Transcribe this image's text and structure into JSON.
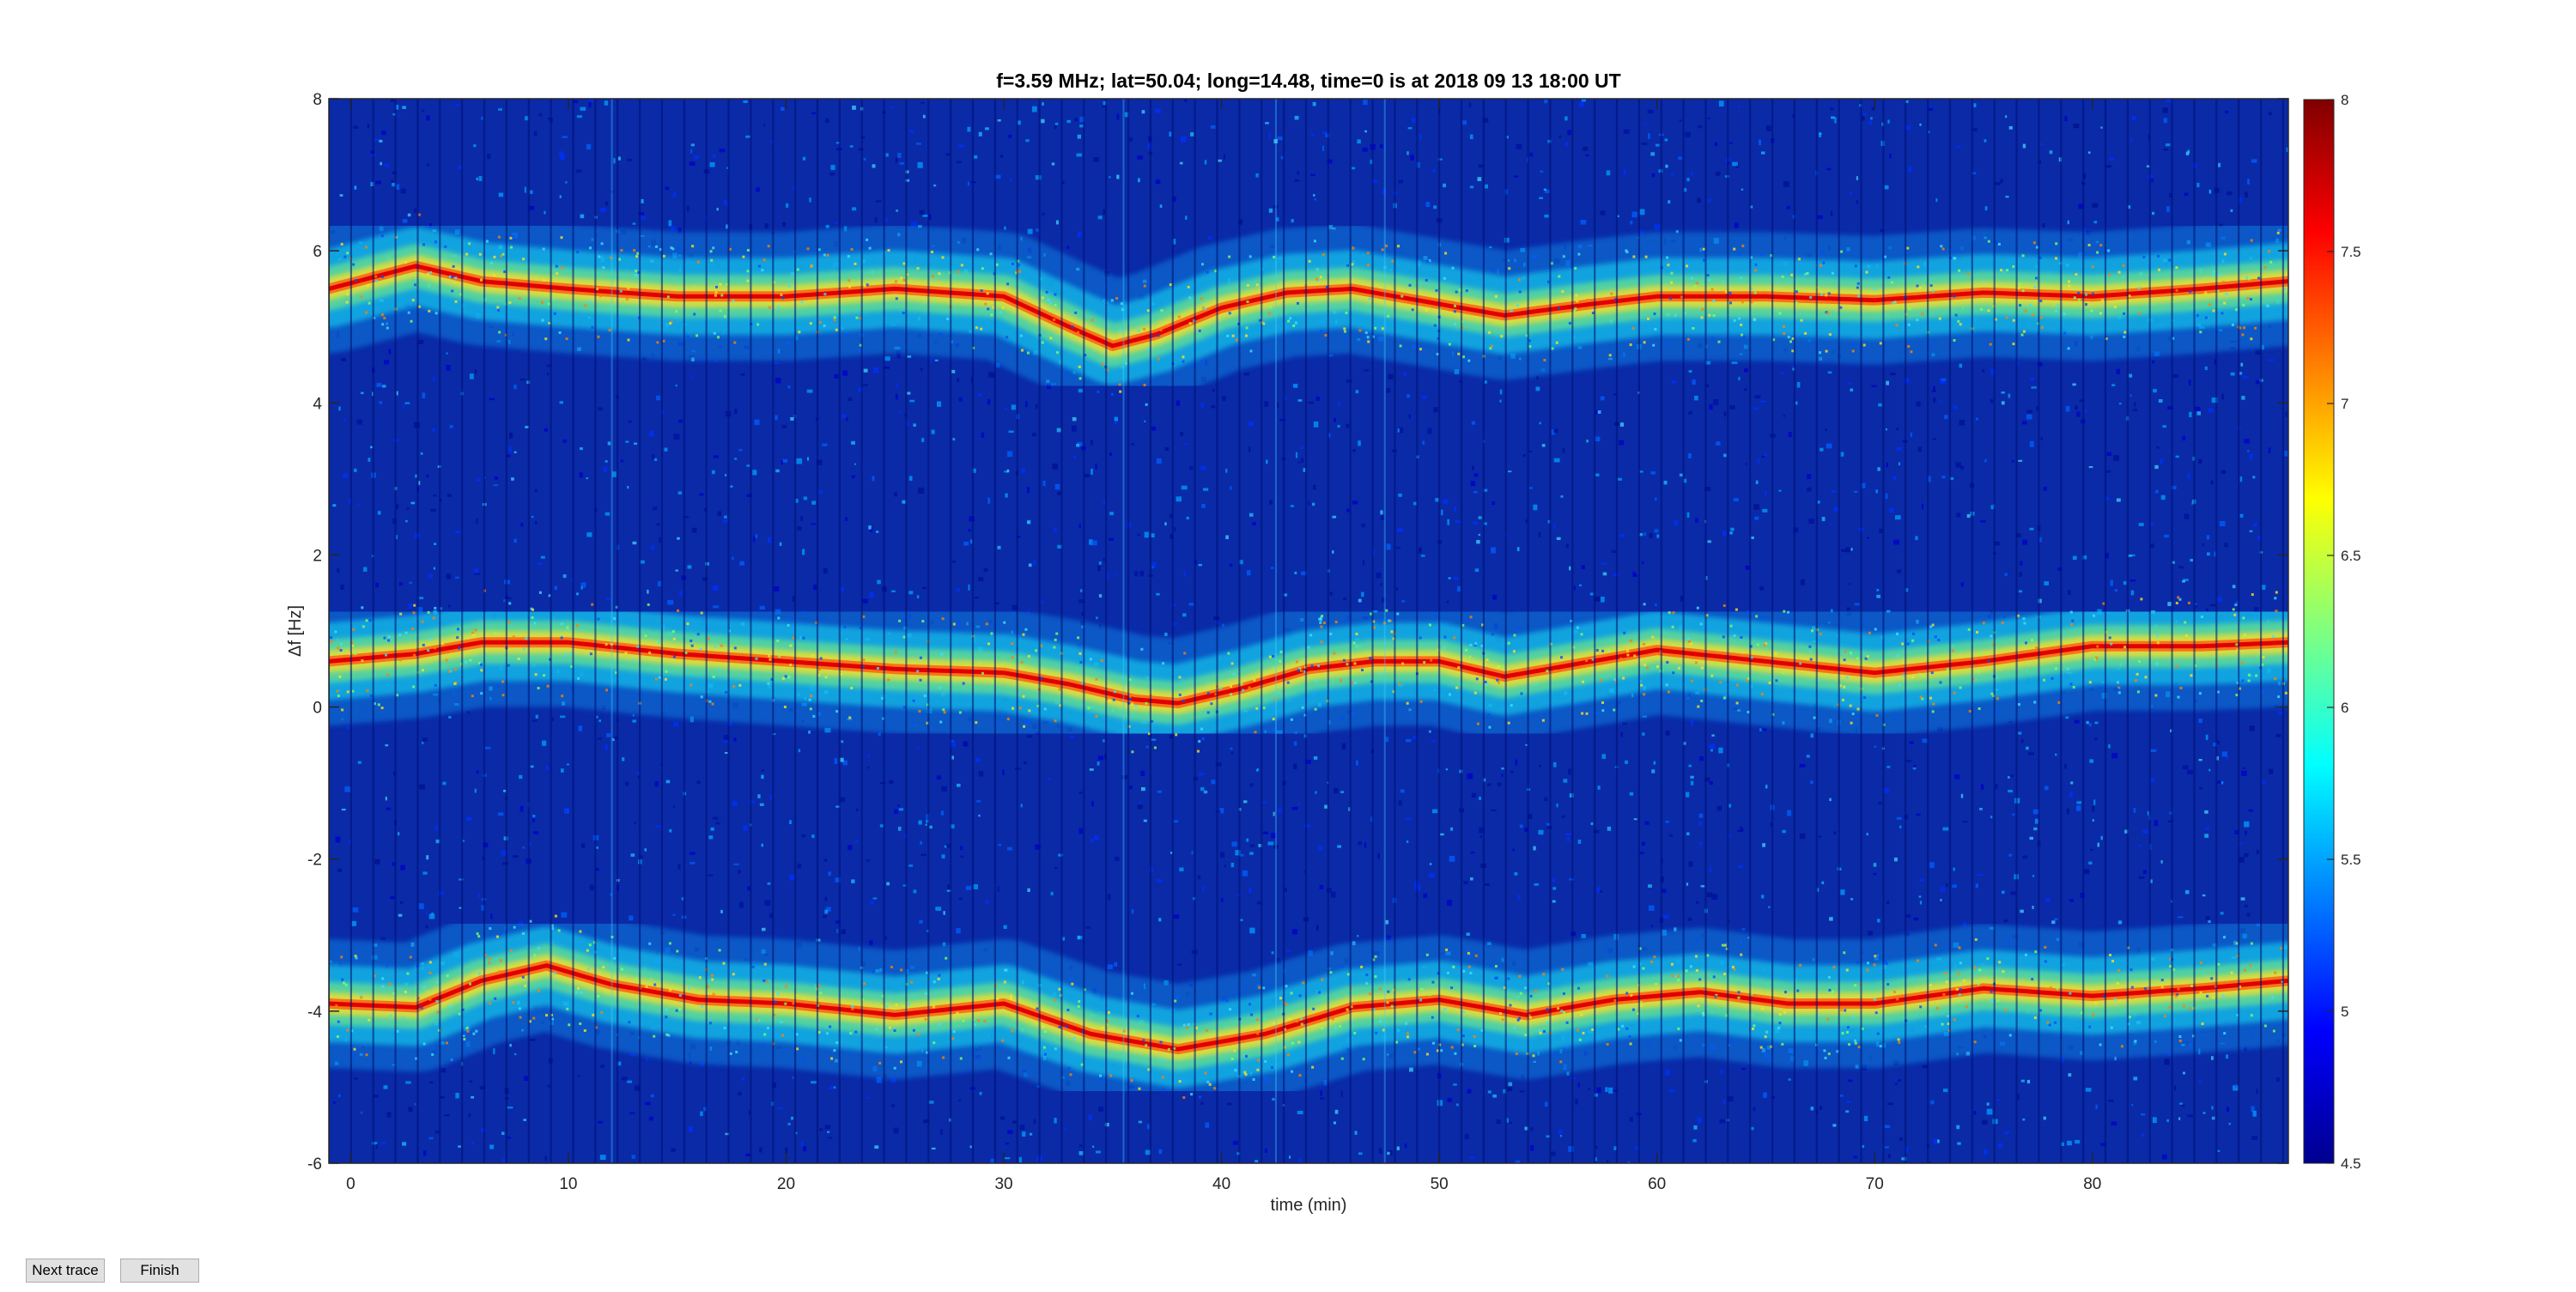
{
  "chart_data": {
    "type": "heatmap",
    "title": "f=3.59 MHz;  lat=50.04; long=14.48, time=0 is at 2018 09 13 18:00 UT",
    "xlabel": "time (min)",
    "ylabel": "Δf [Hz]",
    "xlim": [
      -1,
      89
    ],
    "ylim": [
      -6,
      8
    ],
    "x_ticks": [
      0,
      10,
      20,
      30,
      40,
      50,
      60,
      70,
      80
    ],
    "y_ticks": [
      -6,
      -4,
      -2,
      0,
      2,
      4,
      6,
      8
    ],
    "colorbar": {
      "colormap": "jet",
      "range": [
        4.5,
        8
      ],
      "ticks": [
        4.5,
        5,
        5.5,
        6,
        6.5,
        7,
        7.5,
        8
      ]
    },
    "series": [
      {
        "x": [
          -1,
          3,
          6,
          10,
          15,
          20,
          25,
          30,
          33,
          35,
          37,
          40,
          43,
          46,
          50,
          53,
          57,
          60,
          65,
          70,
          75,
          80,
          85,
          89
        ],
        "y": [
          5.5,
          5.8,
          5.6,
          5.5,
          5.4,
          5.4,
          5.5,
          5.4,
          5.0,
          4.75,
          4.9,
          5.25,
          5.45,
          5.5,
          5.3,
          5.15,
          5.3,
          5.4,
          5.4,
          5.35,
          5.45,
          5.4,
          5.5,
          5.6
        ]
      },
      {
        "x": [
          -1,
          3,
          6,
          10,
          15,
          20,
          25,
          30,
          33,
          36,
          38,
          41,
          44,
          47,
          50,
          53,
          57,
          60,
          65,
          70,
          75,
          80,
          85,
          89
        ],
        "y": [
          0.6,
          0.7,
          0.85,
          0.85,
          0.7,
          0.6,
          0.5,
          0.45,
          0.3,
          0.1,
          0.05,
          0.25,
          0.5,
          0.6,
          0.6,
          0.4,
          0.6,
          0.75,
          0.6,
          0.45,
          0.6,
          0.8,
          0.8,
          0.85
        ]
      },
      {
        "x": [
          -1,
          3,
          6,
          9,
          12,
          16,
          20,
          25,
          30,
          34,
          38,
          42,
          46,
          50,
          54,
          58,
          62,
          66,
          70,
          75,
          80,
          85,
          89
        ],
        "y": [
          -3.9,
          -3.95,
          -3.6,
          -3.4,
          -3.65,
          -3.85,
          -3.9,
          -4.05,
          -3.9,
          -4.3,
          -4.5,
          -4.3,
          -3.95,
          -3.85,
          -4.05,
          -3.85,
          -3.75,
          -3.9,
          -3.9,
          -3.7,
          -3.8,
          -3.7,
          -3.6
        ]
      }
    ]
  },
  "buttons": {
    "next_trace": "Next trace",
    "finish": "Finish"
  }
}
